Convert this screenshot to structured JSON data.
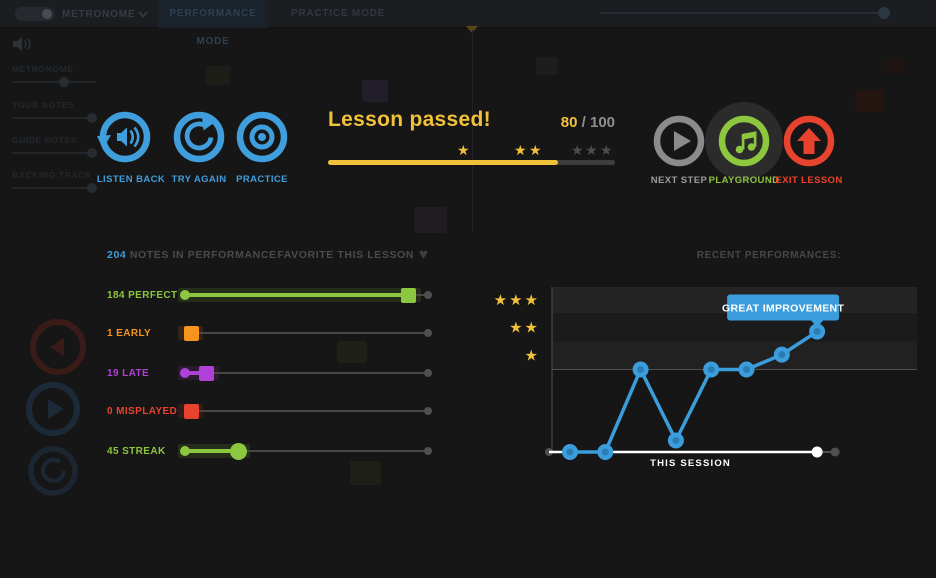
{
  "topbar": {
    "metronome_label": "METRONOME",
    "tabs": [
      {
        "label": "PERFORMANCE MODE"
      },
      {
        "label": "PRACTICE MODE"
      }
    ]
  },
  "mixer": {
    "channels": [
      {
        "label": "METRONOME",
        "level": 0.62
      },
      {
        "label": "YOUR NOTES",
        "level": 0.95
      },
      {
        "label": "GUIDE NOTES",
        "level": 0.95
      },
      {
        "label": "BACKING TRACK",
        "level": 0.95
      }
    ]
  },
  "result": {
    "title": "Lesson passed!",
    "score": "80",
    "score_max": " / 100",
    "score_percent": 80,
    "actions_left": [
      {
        "label": "LISTEN BACK"
      },
      {
        "label": "TRY AGAIN"
      },
      {
        "label": "PRACTICE"
      }
    ],
    "actions_right": [
      {
        "label": "NEXT STEP",
        "color": "#9b9b9b"
      },
      {
        "label": "PLAYGROUND",
        "color": "#8dc63f"
      },
      {
        "label": "EXIT LESSON",
        "color": "#e8432e"
      }
    ]
  },
  "stats": {
    "notes_count": "204",
    "notes_label": " NOTES IN PERFORMANCE",
    "favorite_label": "FAVORITE THIS LESSON",
    "rows": [
      {
        "label": "184 PERFECT",
        "color": "#8dc63f",
        "handle": "square",
        "pos": 0.92,
        "filled": true
      },
      {
        "label": "1 EARLY",
        "color": "#f7941e",
        "handle": "square",
        "pos": 0.025,
        "filled": false
      },
      {
        "label": "19 LATE",
        "color": "#b040d8",
        "handle": "square",
        "pos": 0.09,
        "filled": true
      },
      {
        "label": "0 MISPLAYED",
        "color": "#e8432e",
        "handle": "square",
        "pos": 0.025,
        "filled": false
      },
      {
        "label": "45 STREAK",
        "color": "#8dc63f",
        "handle": "round",
        "pos": 0.22,
        "filled": true
      }
    ]
  },
  "chart_data": {
    "type": "line",
    "title": "RECENT PERFORMANCES:",
    "xlabel": "THIS SESSION",
    "annotation": "GREAT IMPROVEMENT",
    "values": [
      0,
      0,
      50,
      7,
      50,
      50,
      59,
      73
    ],
    "ylim": [
      0,
      100
    ],
    "star_thresholds": {
      "one": 50,
      "two": 67,
      "three": 84
    },
    "grid": false,
    "legend": "none",
    "line_color": "#3b9ddb",
    "point_inner_color": "#2a7db3",
    "star_color": "#f2c13a"
  },
  "ui": {
    "star": "★",
    "heart": "♥"
  },
  "colors": {
    "accent_blue": "#3f9edb",
    "accent_yellow": "#f2c13a",
    "accent_green": "#8dc63f",
    "accent_red": "#e8432e",
    "accent_orange": "#f7941e",
    "accent_purple": "#b040d8"
  }
}
